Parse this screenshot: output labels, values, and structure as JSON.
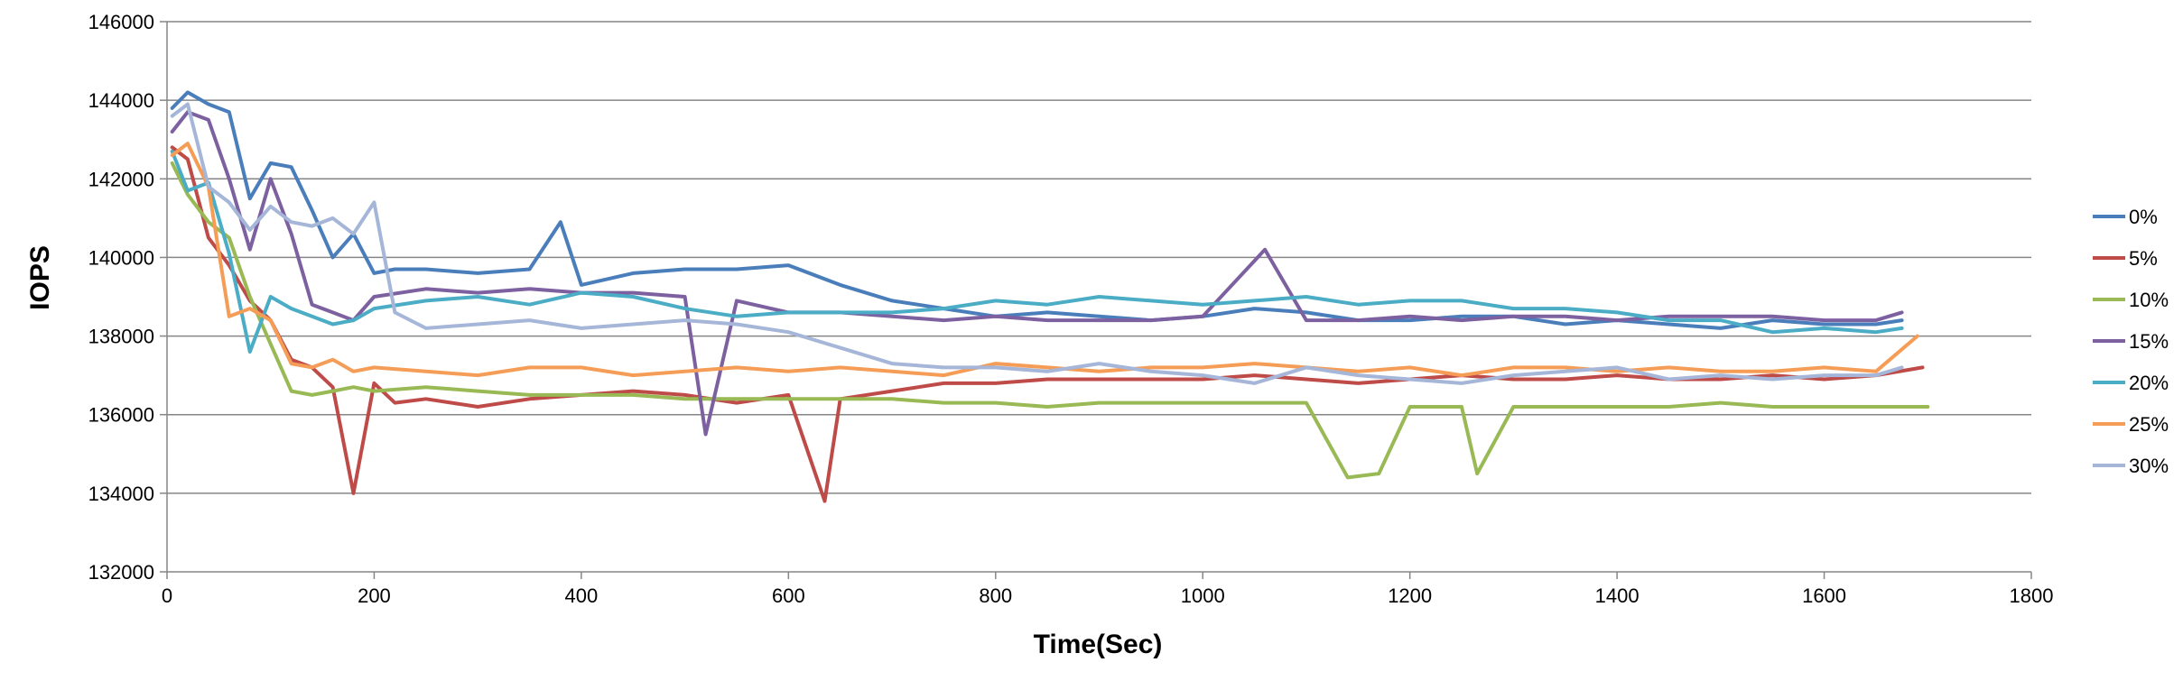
{
  "chart_data": {
    "type": "line",
    "title": "",
    "xlabel": "Time(Sec)",
    "ylabel": "IOPS",
    "xlim": [
      0,
      1800
    ],
    "ylim": [
      132000,
      146000
    ],
    "x_ticks": [
      0,
      200,
      400,
      600,
      800,
      1000,
      1200,
      1400,
      1600,
      1800
    ],
    "y_ticks": [
      132000,
      134000,
      136000,
      138000,
      140000,
      142000,
      144000,
      146000
    ],
    "x_tick_labels": [
      "0",
      "200",
      "400",
      "600",
      "800",
      "1000",
      "1200",
      "1400",
      "1600",
      "1800"
    ],
    "y_tick_labels": [
      "132000",
      "134000",
      "136000",
      "138000",
      "140000",
      "142000",
      "144000",
      "146000"
    ],
    "grid": "horizontal major gridlines",
    "legend_position": "right",
    "series": [
      {
        "name": "0%",
        "color": "#4A7EBB",
        "x": [
          5,
          20,
          40,
          60,
          80,
          100,
          120,
          140,
          160,
          180,
          200,
          220,
          250,
          300,
          350,
          380,
          400,
          450,
          500,
          550,
          600,
          650,
          700,
          750,
          800,
          850,
          900,
          950,
          1000,
          1050,
          1100,
          1150,
          1200,
          1250,
          1300,
          1350,
          1400,
          1450,
          1500,
          1550,
          1600,
          1650,
          1675
        ],
        "values": [
          143800,
          144200,
          143900,
          143700,
          141500,
          142400,
          142300,
          141200,
          140000,
          140600,
          139600,
          139700,
          139700,
          139600,
          139700,
          140900,
          139300,
          139600,
          139700,
          139700,
          139800,
          139300,
          138900,
          138700,
          138500,
          138600,
          138500,
          138400,
          138500,
          138700,
          138600,
          138400,
          138400,
          138500,
          138500,
          138300,
          138400,
          138300,
          138200,
          138400,
          138300,
          138300,
          138400
        ]
      },
      {
        "name": "5%",
        "color": "#BE4B48",
        "x": [
          5,
          20,
          40,
          60,
          80,
          100,
          120,
          140,
          160,
          180,
          200,
          220,
          250,
          300,
          350,
          400,
          450,
          500,
          550,
          600,
          635,
          650,
          700,
          750,
          800,
          850,
          900,
          950,
          1000,
          1050,
          1100,
          1150,
          1200,
          1250,
          1300,
          1350,
          1400,
          1450,
          1500,
          1550,
          1600,
          1650,
          1695
        ],
        "values": [
          142800,
          142500,
          140500,
          139800,
          138900,
          138400,
          137400,
          137200,
          136700,
          134000,
          136800,
          136300,
          136400,
          136200,
          136400,
          136500,
          136600,
          136500,
          136300,
          136500,
          133800,
          136400,
          136600,
          136800,
          136800,
          136900,
          136900,
          136900,
          136900,
          137000,
          136900,
          136800,
          136900,
          137000,
          136900,
          136900,
          137000,
          136900,
          136900,
          137000,
          136900,
          137000,
          137200
        ]
      },
      {
        "name": "10%",
        "color": "#98B954",
        "x": [
          5,
          20,
          40,
          60,
          80,
          100,
          120,
          140,
          160,
          180,
          200,
          250,
          300,
          350,
          400,
          450,
          500,
          550,
          600,
          650,
          700,
          750,
          800,
          850,
          900,
          950,
          1000,
          1050,
          1100,
          1140,
          1170,
          1200,
          1250,
          1265,
          1300,
          1350,
          1400,
          1450,
          1500,
          1550,
          1600,
          1650,
          1700
        ],
        "values": [
          142400,
          141600,
          140900,
          140500,
          139000,
          137800,
          136600,
          136500,
          136600,
          136700,
          136600,
          136700,
          136600,
          136500,
          136500,
          136500,
          136400,
          136400,
          136400,
          136400,
          136400,
          136300,
          136300,
          136200,
          136300,
          136300,
          136300,
          136300,
          136300,
          134400,
          134500,
          136200,
          136200,
          134500,
          136200,
          136200,
          136200,
          136200,
          136300,
          136200,
          136200,
          136200,
          136200
        ]
      },
      {
        "name": "15%",
        "color": "#7D60A0",
        "x": [
          5,
          20,
          40,
          60,
          80,
          100,
          120,
          140,
          160,
          180,
          200,
          250,
          300,
          350,
          400,
          450,
          500,
          520,
          550,
          600,
          650,
          700,
          750,
          800,
          850,
          900,
          950,
          1000,
          1060,
          1100,
          1150,
          1200,
          1250,
          1300,
          1350,
          1400,
          1450,
          1500,
          1550,
          1600,
          1650,
          1675
        ],
        "values": [
          143200,
          143700,
          143500,
          142000,
          140200,
          142000,
          140600,
          138800,
          138600,
          138400,
          139000,
          139200,
          139100,
          139200,
          139100,
          139100,
          139000,
          135500,
          138900,
          138600,
          138600,
          138500,
          138400,
          138500,
          138400,
          138400,
          138400,
          138500,
          140200,
          138400,
          138400,
          138500,
          138400,
          138500,
          138500,
          138400,
          138500,
          138500,
          138500,
          138400,
          138400,
          138600
        ]
      },
      {
        "name": "20%",
        "color": "#4BACC6",
        "x": [
          5,
          20,
          40,
          60,
          80,
          100,
          120,
          140,
          160,
          180,
          200,
          250,
          300,
          350,
          400,
          450,
          500,
          550,
          600,
          650,
          700,
          750,
          800,
          850,
          900,
          950,
          1000,
          1050,
          1100,
          1150,
          1200,
          1250,
          1300,
          1350,
          1400,
          1450,
          1500,
          1550,
          1600,
          1650,
          1675
        ],
        "values": [
          142700,
          141700,
          141900,
          140100,
          137600,
          139000,
          138700,
          138500,
          138300,
          138400,
          138700,
          138900,
          139000,
          138800,
          139100,
          139000,
          138700,
          138500,
          138600,
          138600,
          138600,
          138700,
          138900,
          138800,
          139000,
          138900,
          138800,
          138900,
          139000,
          138800,
          138900,
          138900,
          138700,
          138700,
          138600,
          138400,
          138400,
          138100,
          138200,
          138100,
          138200
        ]
      },
      {
        "name": "25%",
        "color": "#F59D56",
        "x": [
          5,
          20,
          40,
          60,
          80,
          100,
          120,
          140,
          160,
          180,
          200,
          250,
          300,
          350,
          400,
          450,
          500,
          550,
          600,
          650,
          700,
          750,
          800,
          850,
          900,
          950,
          1000,
          1050,
          1100,
          1150,
          1200,
          1250,
          1300,
          1350,
          1400,
          1450,
          1500,
          1550,
          1600,
          1650,
          1690
        ],
        "values": [
          142600,
          142900,
          141800,
          138500,
          138700,
          138400,
          137300,
          137200,
          137400,
          137100,
          137200,
          137100,
          137000,
          137200,
          137200,
          137000,
          137100,
          137200,
          137100,
          137200,
          137100,
          137000,
          137300,
          137200,
          137100,
          137200,
          137200,
          137300,
          137200,
          137100,
          137200,
          137000,
          137200,
          137200,
          137100,
          137200,
          137100,
          137100,
          137200,
          137100,
          138000
        ]
      },
      {
        "name": "30%",
        "color": "#A5B6D8",
        "x": [
          5,
          20,
          40,
          60,
          80,
          100,
          120,
          140,
          160,
          180,
          200,
          220,
          250,
          300,
          350,
          400,
          450,
          500,
          550,
          600,
          650,
          700,
          750,
          800,
          850,
          900,
          950,
          1000,
          1050,
          1100,
          1150,
          1200,
          1250,
          1300,
          1350,
          1400,
          1450,
          1500,
          1550,
          1600,
          1650,
          1675
        ],
        "values": [
          143600,
          143900,
          141800,
          141400,
          140700,
          141300,
          140900,
          140800,
          141000,
          140600,
          141400,
          138600,
          138200,
          138300,
          138400,
          138200,
          138300,
          138400,
          138300,
          138100,
          137700,
          137300,
          137200,
          137200,
          137100,
          137300,
          137100,
          137000,
          136800,
          137200,
          137000,
          136900,
          136800,
          137000,
          137100,
          137200,
          136900,
          137000,
          136900,
          137000,
          137000,
          137200
        ]
      }
    ]
  }
}
